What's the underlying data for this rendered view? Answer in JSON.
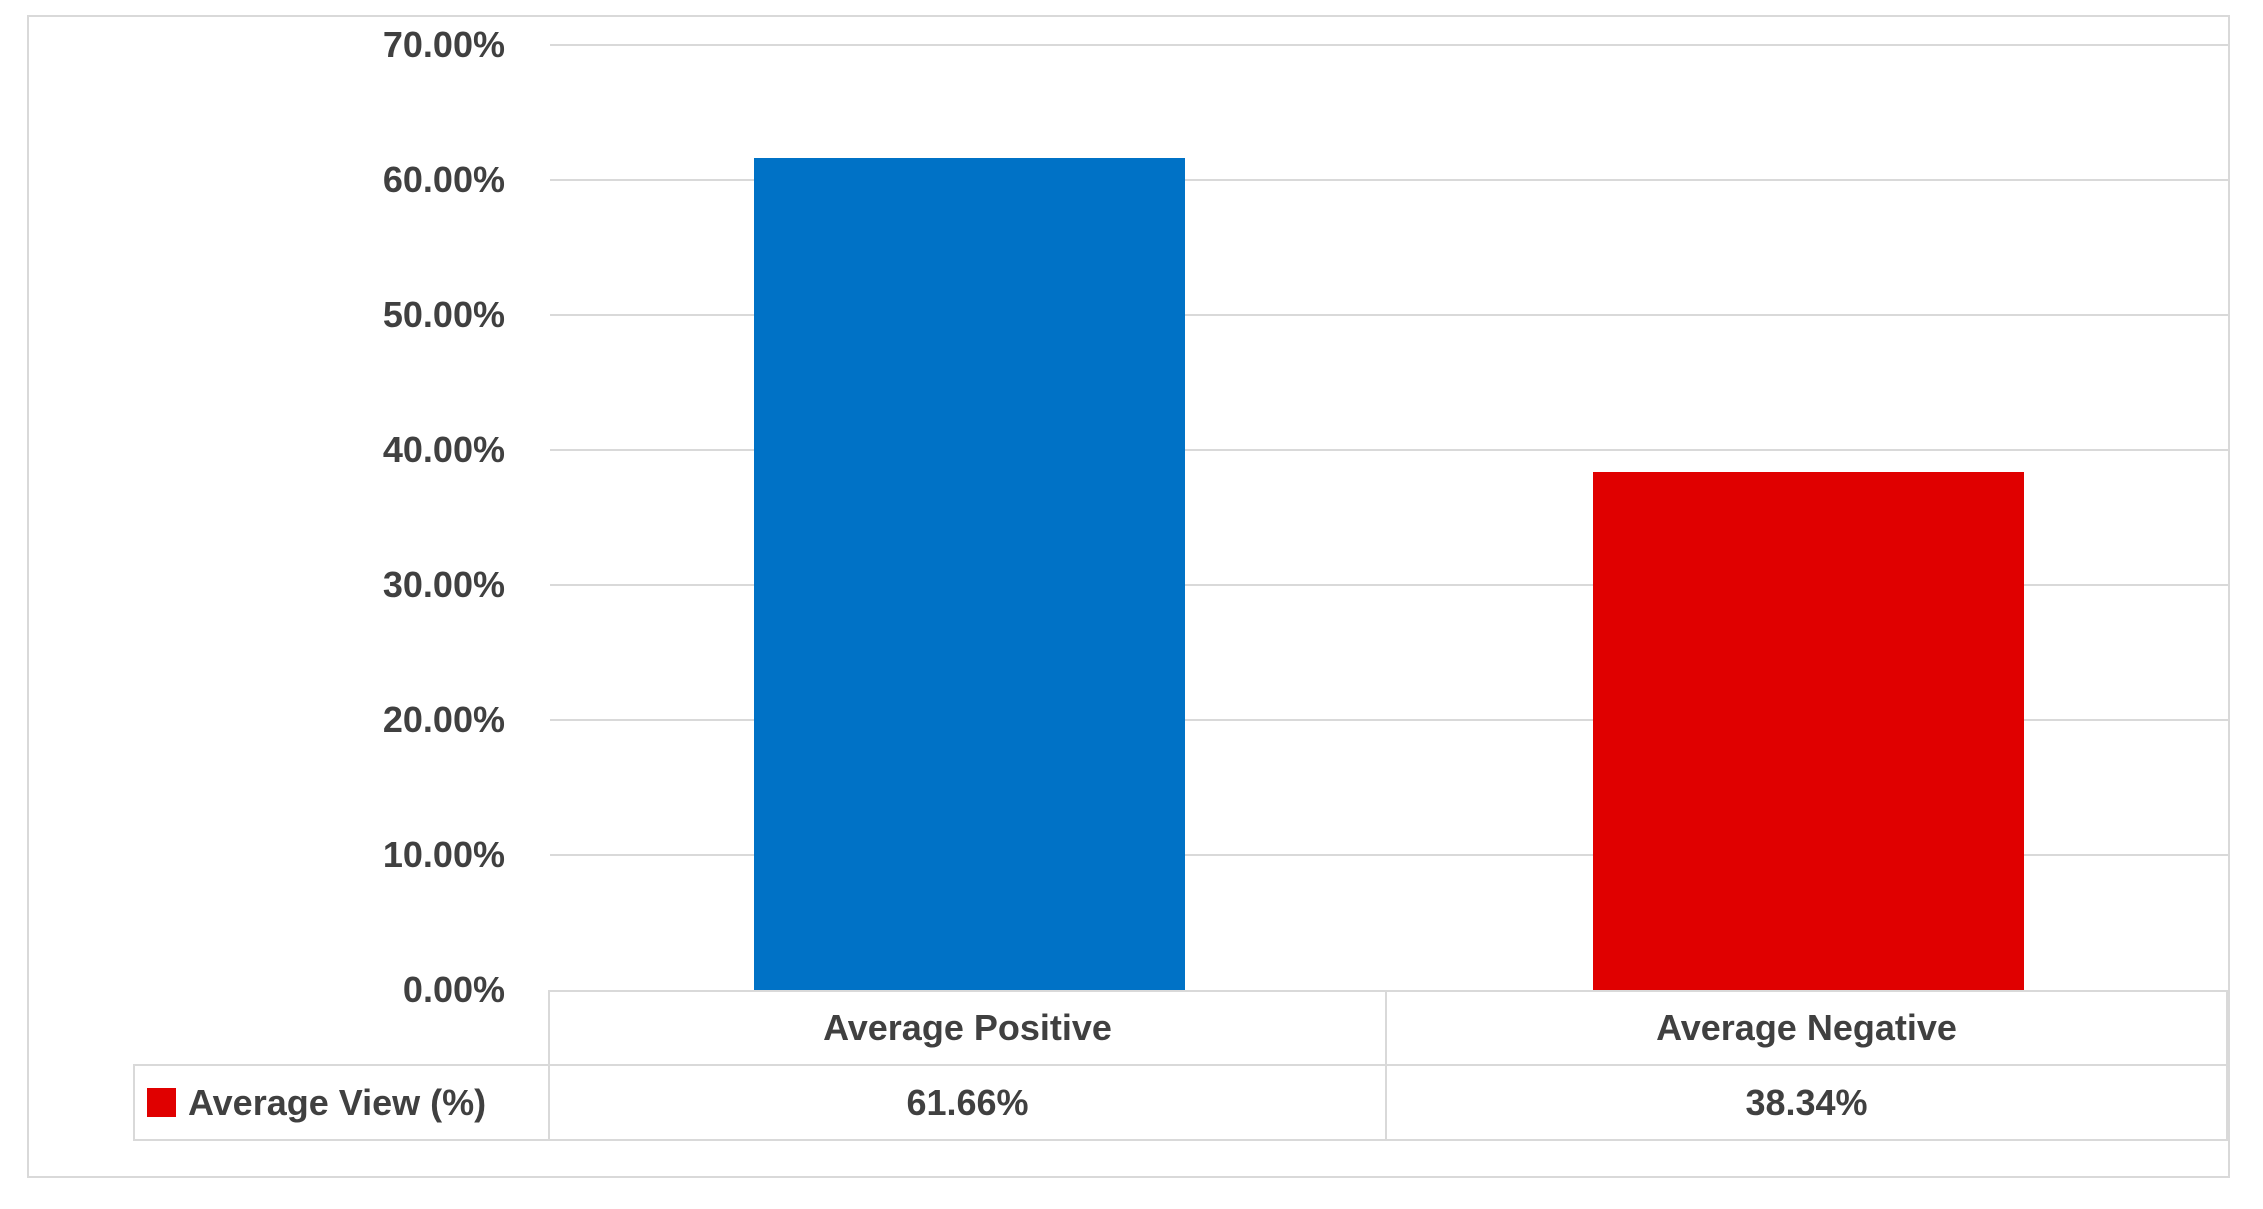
{
  "chart_data": {
    "type": "bar",
    "categories": [
      "Average Positive",
      "Average Negative"
    ],
    "series": [
      {
        "name": "Average View (%)",
        "values": [
          61.66,
          38.34
        ],
        "colors": [
          "#0072C6",
          "#E00000"
        ]
      }
    ],
    "value_labels": [
      "61.66%",
      "38.34%"
    ],
    "title": "",
    "xlabel": "",
    "ylabel": "",
    "ylim": [
      0,
      70
    ],
    "ytick_step": 10,
    "ytick_labels": [
      "70.00%",
      "60.00%",
      "50.00%",
      "40.00%",
      "30.00%",
      "20.00%",
      "10.00%",
      "0.00%"
    ],
    "grid": true,
    "legend_position": "bottom-left table row header",
    "legend_marker_color": "#E00000",
    "data_table_shown": true
  },
  "colors": {
    "background": "#ffffff",
    "frame_border": "#d9d9d9",
    "grid": "#d9d9d9",
    "table_border": "#d9d9d9",
    "text": "#404040",
    "bar_positive": "#0072C6",
    "bar_negative": "#E00000"
  }
}
